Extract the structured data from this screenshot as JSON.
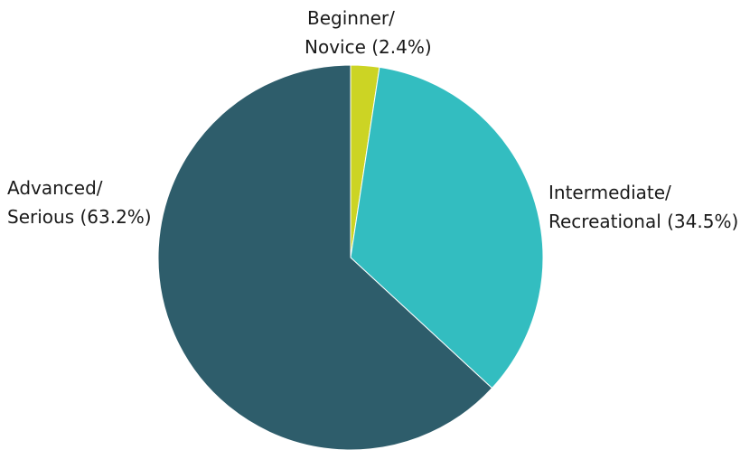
{
  "chart_data": {
    "type": "pie",
    "title": "",
    "start_angle_deg": 0,
    "direction": "clockwise",
    "slices": [
      {
        "label_lines": [
          "Beginner/",
          "Novice (2.4%)"
        ],
        "category": "Beginner/Novice",
        "value": 2.4,
        "color": "#ccd424"
      },
      {
        "label_lines": [
          "Intermediate/",
          "Recreational (34.5%)"
        ],
        "category": "Intermediate/Recreational",
        "value": 34.5,
        "color": "#33bdc0"
      },
      {
        "label_lines": [
          "Advanced/",
          "Serious (63.2%)"
        ],
        "category": "Advanced/Serious",
        "value": 63.2,
        "color": "#2e5d6b"
      }
    ]
  }
}
